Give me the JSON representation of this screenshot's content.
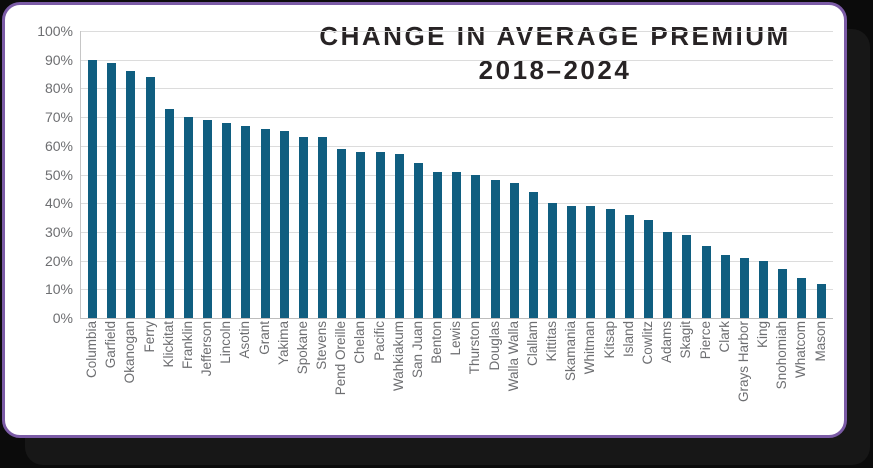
{
  "frame": {
    "background_color": "#0b0b0b",
    "card_color": "#ffffff",
    "card_border_color": "#7b5ba6",
    "card_shadow_color": "#171717"
  },
  "chart_data": {
    "type": "bar",
    "title_line1": "CHANGE IN AVERAGE PREMIUM",
    "title_line2": "2018–2024",
    "title_color": "#272324",
    "bar_color": "#105e80",
    "axis_label_color": "#6d6e71",
    "gridline_color": "#dcdcdc",
    "grid": "horizontal",
    "legend": "none",
    "ylim": [
      0,
      100
    ],
    "y_ticks": [
      "100%",
      "90%",
      "80%",
      "70%",
      "60%",
      "50%",
      "40%",
      "30%",
      "20%",
      "10%",
      "0%"
    ],
    "xlabel": "",
    "ylabel": "",
    "categories": [
      "Columbia",
      "Garfield",
      "Okanogan",
      "Ferry",
      "Klickitat",
      "Franklin",
      "Jefferson",
      "Lincoln",
      "Asotin",
      "Grant",
      "Yakima",
      "Spokane",
      "Stevens",
      "Pend Oreille",
      "Chelan",
      "Pacific",
      "Wahkiakum",
      "San Juan",
      "Benton",
      "Lewis",
      "Thurston",
      "Douglas",
      "Walla Walla",
      "Clallam",
      "Kittitas",
      "Skamania",
      "Whitman",
      "Kitsap",
      "Island",
      "Cowlitz",
      "Adams",
      "Skagit",
      "Pierce",
      "Clark",
      "Grays Harbor",
      "King",
      "Snohomiah",
      "Whatcom",
      "Mason"
    ],
    "values": [
      90,
      89,
      86,
      84,
      73,
      70,
      69,
      68,
      67,
      66,
      65,
      63,
      63,
      59,
      58,
      58,
      57,
      54,
      51,
      51,
      50,
      48,
      47,
      44,
      40,
      39,
      39,
      38,
      36,
      34,
      30,
      29,
      25,
      22,
      21,
      20,
      17,
      14,
      12
    ]
  }
}
